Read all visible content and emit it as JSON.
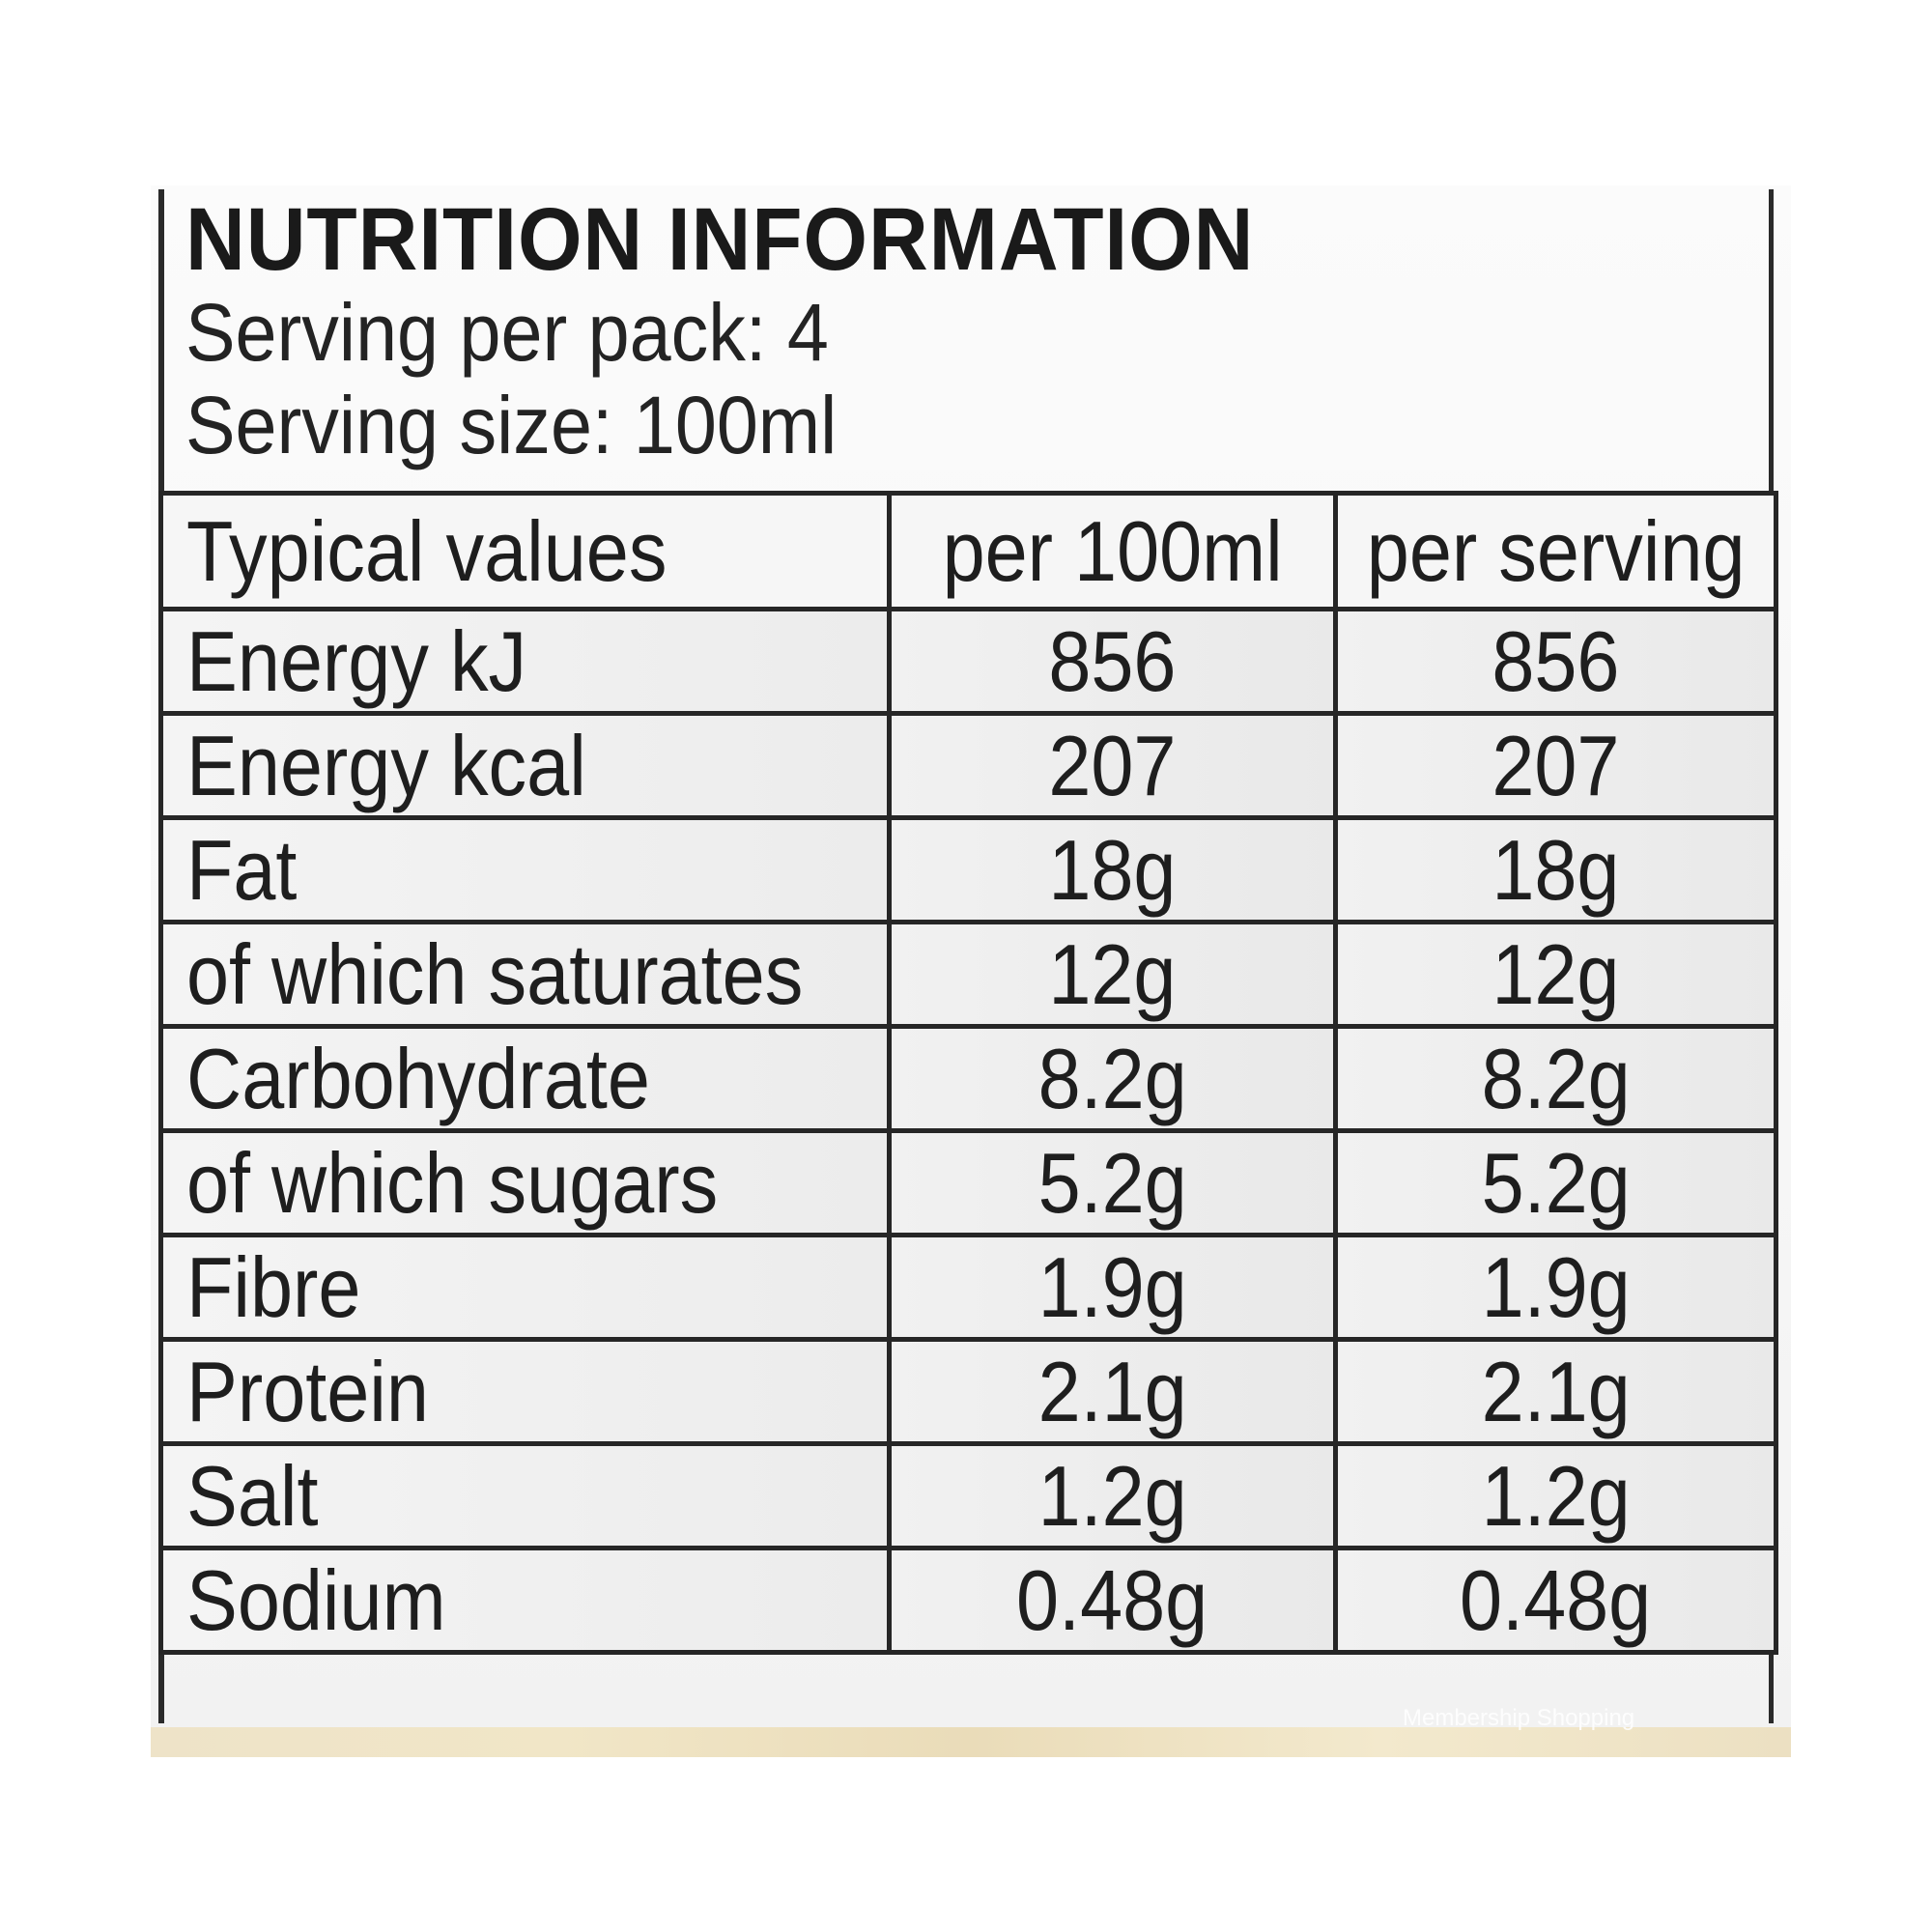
{
  "header": {
    "title": "NUTRITION INFORMATION",
    "servings_per_pack": "Serving per pack: 4",
    "serving_size": "Serving size: 100ml"
  },
  "table": {
    "headers": [
      "Typical values",
      "per 100ml",
      "per serving"
    ],
    "rows": [
      {
        "name": "Energy kJ",
        "per_100ml": "856",
        "per_serving": "856"
      },
      {
        "name": "Energy kcal",
        "per_100ml": "207",
        "per_serving": "207"
      },
      {
        "name": "Fat",
        "per_100ml": "18g",
        "per_serving": "18g"
      },
      {
        "name": "of which saturates",
        "per_100ml": "12g",
        "per_serving": "12g"
      },
      {
        "name": "Carbohydrate",
        "per_100ml": "8.2g",
        "per_serving": "8.2g"
      },
      {
        "name": "of which sugars",
        "per_100ml": "5.2g",
        "per_serving": "5.2g"
      },
      {
        "name": "Fibre",
        "per_100ml": "1.9g",
        "per_serving": "1.9g"
      },
      {
        "name": "Protein",
        "per_100ml": "2.1g",
        "per_serving": "2.1g"
      },
      {
        "name": "Salt",
        "per_100ml": "1.2g",
        "per_serving": "1.2g"
      },
      {
        "name": "Sodium",
        "per_100ml": "0.48g",
        "per_serving": "0.48g"
      }
    ]
  },
  "watermark": "Membership Shopping"
}
